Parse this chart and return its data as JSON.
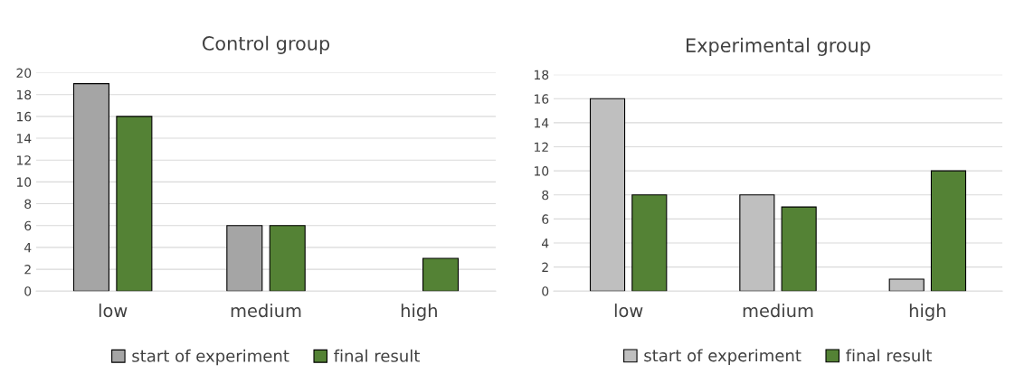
{
  "chart_data": [
    {
      "type": "bar",
      "title": "Control group",
      "categories": [
        "low",
        "medium",
        "high"
      ],
      "series": [
        {
          "name": "start of experiment",
          "color": "#a5a5a5",
          "values": [
            19,
            6,
            0
          ]
        },
        {
          "name": "final result",
          "color": "#548235",
          "values": [
            16,
            6,
            3
          ]
        }
      ],
      "ylim": [
        0,
        20
      ],
      "yticks": [
        0,
        2,
        4,
        6,
        8,
        10,
        12,
        14,
        16,
        18,
        20
      ],
      "grid": "y",
      "legend": "bottom"
    },
    {
      "type": "bar",
      "title": "Experimental group",
      "categories": [
        "low",
        "medium",
        "high"
      ],
      "series": [
        {
          "name": "start of experiment",
          "color": "#bfbfbf",
          "values": [
            16,
            8,
            1
          ]
        },
        {
          "name": "final result",
          "color": "#548235",
          "values": [
            8,
            7,
            10
          ]
        }
      ],
      "ylim": [
        0,
        18
      ],
      "yticks": [
        0,
        2,
        4,
        6,
        8,
        10,
        12,
        14,
        16,
        18
      ],
      "grid": "y",
      "legend": "bottom"
    }
  ]
}
